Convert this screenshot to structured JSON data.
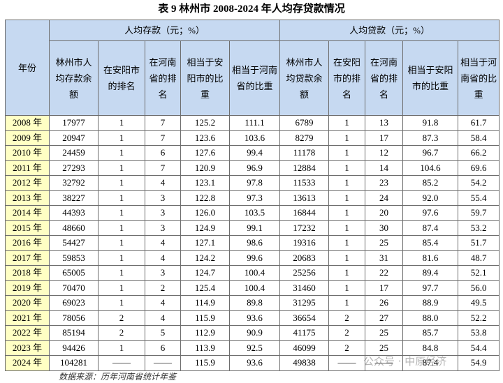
{
  "title": "表 9 林州市 2008-2024 年人均存贷款情况",
  "table": {
    "year_header": "年份",
    "groups": [
      "人均存款（元；%）",
      "人均贷款（元；%）"
    ],
    "headers": [
      "林州市人均存款余额",
      "在安阳市的排名",
      "在河南省的排名",
      "相当于安阳市的比重",
      "相当于河南省的比重",
      "林州市人均贷款余额",
      "在安阳市的排名",
      "在河南省的排名",
      "相当于安阳市的比重",
      "相当于河南省的比重"
    ],
    "rows": [
      [
        "2008 年",
        "17977",
        "1",
        "7",
        "125.2",
        "111.1",
        "6789",
        "1",
        "13",
        "91.8",
        "61.7"
      ],
      [
        "2009 年",
        "20947",
        "1",
        "7",
        "123.6",
        "103.6",
        "8279",
        "1",
        "17",
        "87.3",
        "58.4"
      ],
      [
        "2010 年",
        "24459",
        "1",
        "6",
        "127.6",
        "99.4",
        "11178",
        "1",
        "12",
        "96.7",
        "66.2"
      ],
      [
        "2011 年",
        "27293",
        "1",
        "7",
        "120.9",
        "96.9",
        "12884",
        "1",
        "14",
        "104.6",
        "69.6"
      ],
      [
        "2012 年",
        "32792",
        "1",
        "4",
        "123.1",
        "97.8",
        "11533",
        "1",
        "23",
        "85.2",
        "54.2"
      ],
      [
        "2013 年",
        "38227",
        "1",
        "3",
        "122.8",
        "97.3",
        "13613",
        "1",
        "24",
        "92.0",
        "55.4"
      ],
      [
        "2014 年",
        "44393",
        "1",
        "3",
        "126.0",
        "103.5",
        "16844",
        "1",
        "20",
        "97.6",
        "59.7"
      ],
      [
        "2015 年",
        "48660",
        "1",
        "3",
        "124.9",
        "99.1",
        "17232",
        "1",
        "30",
        "87.4",
        "53.2"
      ],
      [
        "2016 年",
        "54427",
        "1",
        "4",
        "127.1",
        "98.6",
        "19316",
        "1",
        "25",
        "85.4",
        "51.7"
      ],
      [
        "2017 年",
        "59853",
        "1",
        "4",
        "124.2",
        "99.6",
        "20683",
        "1",
        "31",
        "81.6",
        "48.7"
      ],
      [
        "2018 年",
        "65005",
        "1",
        "3",
        "124.7",
        "100.4",
        "25256",
        "1",
        "22",
        "89.4",
        "52.1"
      ],
      [
        "2019 年",
        "70470",
        "1",
        "2",
        "125.4",
        "100.4",
        "31460",
        "1",
        "17",
        "97.7",
        "56.0"
      ],
      [
        "2020 年",
        "69023",
        "1",
        "4",
        "114.9",
        "89.8",
        "31295",
        "1",
        "26",
        "88.9",
        "49.5"
      ],
      [
        "2021 年",
        "78056",
        "2",
        "4",
        "115.9",
        "93.6",
        "36654",
        "2",
        "27",
        "88.0",
        "52.2"
      ],
      [
        "2022 年",
        "85194",
        "2",
        "5",
        "112.9",
        "90.9",
        "41175",
        "2",
        "25",
        "85.7",
        "53.8"
      ],
      [
        "2023 年",
        "94426",
        "1",
        "6",
        "113.9",
        "92.5",
        "46099",
        "2",
        "25",
        "84.8",
        "54.4"
      ],
      [
        "2024 年",
        "104281",
        "——",
        "——",
        "115.9",
        "93.6",
        "49838",
        "——",
        "——",
        "87.4",
        "54.9"
      ]
    ]
  },
  "source": "数据来源：历年河南省统计年鉴",
  "watermark": "公众号 · 中原经济"
}
